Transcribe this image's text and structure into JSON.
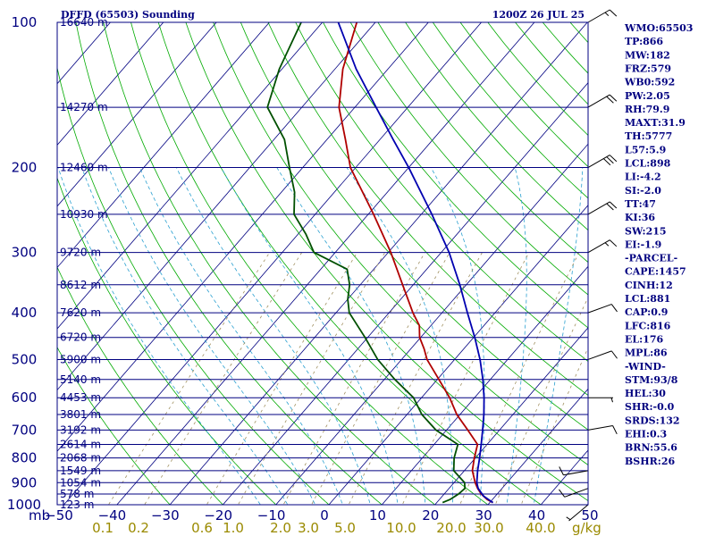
{
  "header": {
    "title": "DFFD (65503) Sounding",
    "datetime": "1200Z 26 JUL 25"
  },
  "colors": {
    "frame": "#000080",
    "isobar": "#000080",
    "isotherm": "#000080",
    "dry_adiabat": "#00aa00",
    "moist_adiabat": "#2aa0d0",
    "mixing_ratio": "#a09060",
    "temperature": "#b00000",
    "dewpoint": "#005000",
    "parcel": "#0000b0",
    "barbs": "#000000",
    "mixing_label": "#9a8a00"
  },
  "chart_data": {
    "type": "skew-t",
    "title": "DFFD (65503) Sounding",
    "valid": "1200Z 26 JUL 25",
    "y_axis": {
      "label": "mb",
      "scale": "log",
      "range": [
        1000,
        100
      ],
      "ticks": [
        "100",
        "200",
        "300",
        "400",
        "500",
        "600",
        "700",
        "800",
        "900",
        "1000"
      ]
    },
    "x_axis": {
      "unit": "°C",
      "range": [
        -50,
        50
      ],
      "ticks": [
        "−50",
        "−40",
        "−30",
        "−20",
        "−10",
        "0",
        "10",
        "20",
        "30",
        "40",
        "50"
      ]
    },
    "mixing_ratio_axis": {
      "unit": "g/kg",
      "ticks": [
        "0.1",
        "0.2",
        "0.6",
        "1.0",
        "2.0",
        "3.0",
        "5.0",
        "10.0",
        "20.0",
        "30.0",
        "40.0"
      ]
    },
    "heights": [
      {
        "p": 100,
        "label": "16640 m"
      },
      {
        "p": 150,
        "label": "14270 m"
      },
      {
        "p": 200,
        "label": "12460 m"
      },
      {
        "p": 250,
        "label": "10930 m"
      },
      {
        "p": 300,
        "label": "9720 m"
      },
      {
        "p": 350,
        "label": "8612 m"
      },
      {
        "p": 400,
        "label": "7620 m"
      },
      {
        "p": 450,
        "label": "6720 m"
      },
      {
        "p": 500,
        "label": "5900 m"
      },
      {
        "p": 550,
        "label": "5140 m"
      },
      {
        "p": 600,
        "label": "4453 m"
      },
      {
        "p": 650,
        "label": "3801 m"
      },
      {
        "p": 700,
        "label": "3192 m"
      },
      {
        "p": 750,
        "label": "2614 m"
      },
      {
        "p": 800,
        "label": "2068 m"
      },
      {
        "p": 850,
        "label": "1549 m"
      },
      {
        "p": 900,
        "label": "1054 m"
      },
      {
        "p": 950,
        "label": "578 m"
      },
      {
        "p": 1000,
        "label": "123 m"
      }
    ],
    "series": [
      {
        "key": "temperature",
        "points": [
          [
            990,
            30.6
          ],
          [
            975,
            29.0
          ],
          [
            950,
            27.0
          ],
          [
            925,
            25.4
          ],
          [
            900,
            24.0
          ],
          [
            850,
            21.5
          ],
          [
            800,
            19.8
          ],
          [
            750,
            18.2
          ],
          [
            700,
            14.0
          ],
          [
            650,
            9.4
          ],
          [
            600,
            5.3
          ],
          [
            550,
            0.3
          ],
          [
            500,
            -5.2
          ],
          [
            475,
            -7.5
          ],
          [
            450,
            -10.2
          ],
          [
            425,
            -12.2
          ],
          [
            400,
            -15.5
          ],
          [
            350,
            -22.0
          ],
          [
            300,
            -29.5
          ],
          [
            250,
            -39.0
          ],
          [
            200,
            -51.0
          ],
          [
            175,
            -56.5
          ],
          [
            150,
            -63.0
          ],
          [
            125,
            -68.5
          ],
          [
            100,
            -73.5
          ]
        ]
      },
      {
        "key": "dewpoint",
        "points": [
          [
            990,
            21.1
          ],
          [
            975,
            22.0
          ],
          [
            950,
            22.7
          ],
          [
            925,
            23.0
          ],
          [
            900,
            22.0
          ],
          [
            850,
            18.0
          ],
          [
            800,
            16.0
          ],
          [
            750,
            14.5
          ],
          [
            700,
            8.0
          ],
          [
            650,
            2.8
          ],
          [
            600,
            -1.5
          ],
          [
            550,
            -8.0
          ],
          [
            500,
            -14.5
          ],
          [
            450,
            -20.5
          ],
          [
            400,
            -27.5
          ],
          [
            375,
            -30.0
          ],
          [
            350,
            -32.0
          ],
          [
            325,
            -35.0
          ],
          [
            300,
            -44.0
          ],
          [
            275,
            -48.5
          ],
          [
            250,
            -54.0
          ],
          [
            225,
            -57.5
          ],
          [
            200,
            -62.5
          ],
          [
            175,
            -68.0
          ],
          [
            150,
            -76.5
          ],
          [
            125,
            -80.5
          ],
          [
            100,
            -84.0
          ]
        ]
      },
      {
        "key": "parcel",
        "points": [
          [
            990,
            30.6
          ],
          [
            960,
            27.8
          ],
          [
            925,
            25.5
          ],
          [
            900,
            24.3
          ],
          [
            850,
            22.5
          ],
          [
            800,
            20.8
          ],
          [
            750,
            18.9
          ],
          [
            700,
            16.8
          ],
          [
            650,
            14.5
          ],
          [
            600,
            11.8
          ],
          [
            550,
            8.6
          ],
          [
            500,
            4.8
          ],
          [
            450,
            0.2
          ],
          [
            400,
            -5.2
          ],
          [
            350,
            -11.2
          ],
          [
            300,
            -18.5
          ],
          [
            250,
            -28.0
          ],
          [
            200,
            -40.0
          ],
          [
            175,
            -47.5
          ],
          [
            150,
            -56.0
          ],
          [
            125,
            -66.0
          ],
          [
            100,
            -77.0
          ]
        ]
      }
    ]
  },
  "indices": [
    "WMO:65503",
    "TP:866",
    "MW:182",
    "FRZ:579",
    "WB0:592",
    "PW:2.05",
    "RH:79.9",
    "MAXT:31.9",
    "TH:5777",
    "L57:5.9",
    "LCL:898",
    "LI:-4.2",
    "SI:-2.0",
    "TT:47",
    "KI:36",
    "SW:215",
    "EI:-1.9",
    "-PARCEL-",
    "CAPE:1457",
    "CINH:12",
    "LCL:881",
    "CAP:0.9",
    "LFC:816",
    "EL:176",
    "MPL:86",
    "-WIND-",
    "STM:93/8",
    "HEL:30",
    "SHR:-0.0",
    "SRDS:132",
    "EHI:0.3",
    "BRN:55.6",
    "BSHR:26"
  ],
  "wind_barbs": [
    {
      "p": 1000,
      "dir": 230,
      "spd": 5
    },
    {
      "p": 925,
      "dir": 250,
      "spd": 10
    },
    {
      "p": 850,
      "dir": 260,
      "spd": 10
    },
    {
      "p": 700,
      "dir": 80,
      "spd": 10
    },
    {
      "p": 600,
      "dir": 90,
      "spd": 5
    },
    {
      "p": 500,
      "dir": 70,
      "spd": 10
    },
    {
      "p": 400,
      "dir": 70,
      "spd": 10
    },
    {
      "p": 300,
      "dir": 60,
      "spd": 15
    },
    {
      "p": 250,
      "dir": 60,
      "spd": 20
    },
    {
      "p": 200,
      "dir": 60,
      "spd": 30
    },
    {
      "p": 150,
      "dir": 60,
      "spd": 20
    },
    {
      "p": 100,
      "dir": 60,
      "spd": 15
    }
  ]
}
